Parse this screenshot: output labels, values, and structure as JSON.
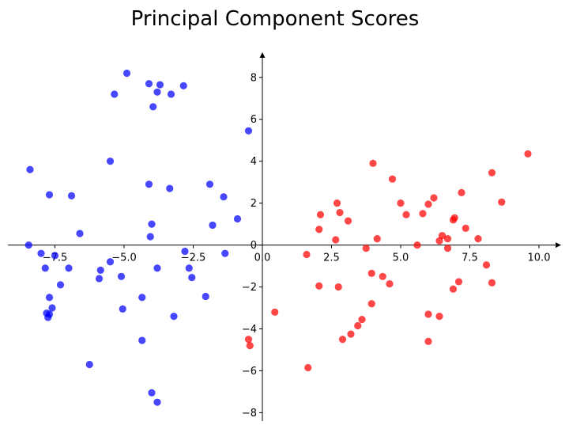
{
  "chart_data": {
    "type": "scatter",
    "title": "Principal Component Scores",
    "xlabel": "",
    "ylabel": "",
    "xlim": [
      -9.2,
      10.8
    ],
    "ylim": [
      -8.4,
      9.2
    ],
    "x_ticks": [
      -7.5,
      -5.0,
      -2.5,
      0.0,
      2.5,
      5.0,
      7.5,
      10.0
    ],
    "x_tick_labels": [
      "−7.5",
      "−5.0",
      "−2.5",
      "0.0",
      "2.5",
      "5.0",
      "7.5",
      "10.0"
    ],
    "y_ticks": [
      -8,
      -6,
      -4,
      -2,
      0,
      2,
      4,
      6,
      8
    ],
    "y_tick_labels": [
      "−8",
      "−6",
      "−4",
      "−2",
      "0",
      "2",
      "4",
      "6",
      "8"
    ],
    "grid": false,
    "spines": "centered at origin with arrowheads",
    "series": [
      {
        "color": "#0000ff",
        "points": [
          [
            -4.9,
            8.2
          ],
          [
            -4.1,
            7.7
          ],
          [
            -3.7,
            7.65
          ],
          [
            -2.85,
            7.6
          ],
          [
            -3.8,
            7.3
          ],
          [
            -3.3,
            7.2
          ],
          [
            -5.35,
            7.2
          ],
          [
            -3.95,
            6.6
          ],
          [
            -0.5,
            5.45
          ],
          [
            -8.4,
            3.6
          ],
          [
            -5.5,
            4.0
          ],
          [
            -4.1,
            2.9
          ],
          [
            -1.9,
            2.9
          ],
          [
            -3.35,
            2.7
          ],
          [
            -7.7,
            2.4
          ],
          [
            -6.9,
            2.35
          ],
          [
            -1.4,
            2.3
          ],
          [
            -0.9,
            1.25
          ],
          [
            -4.0,
            1.0
          ],
          [
            -1.8,
            0.95
          ],
          [
            -6.6,
            0.55
          ],
          [
            -4.05,
            0.4
          ],
          [
            -8.45,
            0.0
          ],
          [
            -2.8,
            -0.3
          ],
          [
            -8.0,
            -0.4
          ],
          [
            -7.5,
            -0.5
          ],
          [
            -1.35,
            -0.4
          ],
          [
            -5.5,
            -0.8
          ],
          [
            -7.85,
            -1.1
          ],
          [
            -7.0,
            -1.1
          ],
          [
            -3.8,
            -1.1
          ],
          [
            -2.65,
            -1.1
          ],
          [
            -5.85,
            -1.2
          ],
          [
            -5.1,
            -1.5
          ],
          [
            -2.55,
            -1.55
          ],
          [
            -5.9,
            -1.6
          ],
          [
            -7.3,
            -1.9
          ],
          [
            -7.7,
            -2.5
          ],
          [
            -4.35,
            -2.5
          ],
          [
            -2.05,
            -2.45
          ],
          [
            -7.6,
            -3.0
          ],
          [
            -5.05,
            -3.05
          ],
          [
            -7.8,
            -3.25
          ],
          [
            -7.7,
            -3.3
          ],
          [
            -7.75,
            -3.45
          ],
          [
            -3.2,
            -3.4
          ],
          [
            -4.35,
            -4.55
          ],
          [
            -6.25,
            -5.7
          ],
          [
            -4.0,
            -7.05
          ],
          [
            -3.8,
            -7.5
          ]
        ]
      },
      {
        "color": "#ff0000",
        "points": [
          [
            9.6,
            4.35
          ],
          [
            4.0,
            3.9
          ],
          [
            8.3,
            3.45
          ],
          [
            4.7,
            3.15
          ],
          [
            7.2,
            2.5
          ],
          [
            6.2,
            2.25
          ],
          [
            8.65,
            2.05
          ],
          [
            2.7,
            2.0
          ],
          [
            5.0,
            2.0
          ],
          [
            6.0,
            1.95
          ],
          [
            2.1,
            1.45
          ],
          [
            2.8,
            1.55
          ],
          [
            5.2,
            1.45
          ],
          [
            5.8,
            1.5
          ],
          [
            6.95,
            1.3
          ],
          [
            6.9,
            1.2
          ],
          [
            3.1,
            1.15
          ],
          [
            7.35,
            0.8
          ],
          [
            2.05,
            0.75
          ],
          [
            6.5,
            0.45
          ],
          [
            6.7,
            0.3
          ],
          [
            2.65,
            0.25
          ],
          [
            4.15,
            0.3
          ],
          [
            6.4,
            0.2
          ],
          [
            7.8,
            0.3
          ],
          [
            5.6,
            0.0
          ],
          [
            6.7,
            -0.15
          ],
          [
            3.75,
            -0.15
          ],
          [
            1.6,
            -0.45
          ],
          [
            8.1,
            -0.95
          ],
          [
            3.95,
            -1.35
          ],
          [
            4.35,
            -1.5
          ],
          [
            7.1,
            -1.75
          ],
          [
            8.3,
            -1.8
          ],
          [
            4.6,
            -1.85
          ],
          [
            2.05,
            -1.95
          ],
          [
            2.75,
            -2.0
          ],
          [
            6.9,
            -2.1
          ],
          [
            3.95,
            -2.8
          ],
          [
            0.45,
            -3.2
          ],
          [
            6.0,
            -3.3
          ],
          [
            6.4,
            -3.4
          ],
          [
            3.6,
            -3.55
          ],
          [
            3.45,
            -3.85
          ],
          [
            3.2,
            -4.25
          ],
          [
            2.9,
            -4.5
          ],
          [
            6.0,
            -4.6
          ],
          [
            -0.5,
            -4.5
          ],
          [
            -0.45,
            -4.8
          ],
          [
            1.65,
            -5.85
          ]
        ]
      }
    ]
  }
}
